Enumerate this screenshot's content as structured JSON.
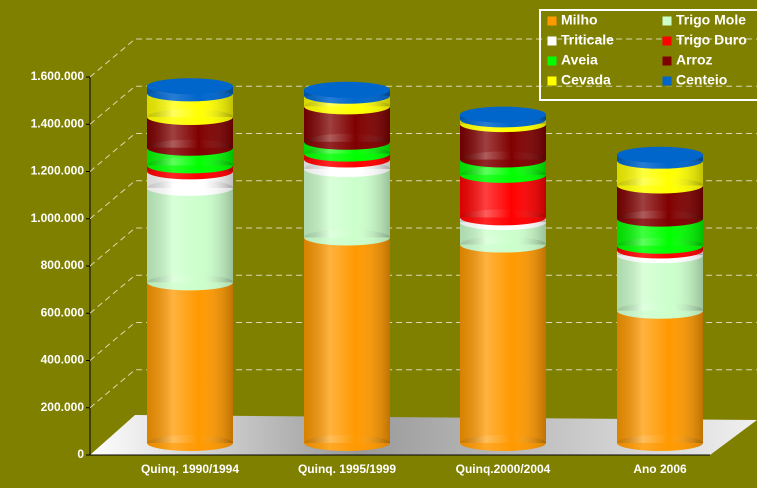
{
  "chart_data": {
    "type": "bar3d-stacked",
    "categories": [
      "Quinq. 1990/1994",
      "Quinq. 1995/1999",
      "Quinq.2000/2004",
      "Ano 2006"
    ],
    "series": [
      {
        "name": "Milho",
        "color": "#ff9900",
        "values": [
          680000,
          870000,
          840000,
          560000
        ]
      },
      {
        "name": "Trigo Mole",
        "color": "#ccffcc",
        "values": [
          400000,
          290000,
          95000,
          235000
        ]
      },
      {
        "name": "Triticale",
        "color": "#ffffff",
        "values": [
          70000,
          40000,
          20000,
          20000
        ]
      },
      {
        "name": "Trigo Duro",
        "color": "#ff0000",
        "values": [
          25000,
          25000,
          180000,
          20000
        ]
      },
      {
        "name": "Aveia",
        "color": "#00ff00",
        "values": [
          75000,
          50000,
          65000,
          115000
        ]
      },
      {
        "name": "Arroz",
        "color": "#800000",
        "values": [
          130000,
          150000,
          150000,
          140000
        ]
      },
      {
        "name": "Cevada",
        "color": "#ffff00",
        "values": [
          100000,
          45000,
          20000,
          105000
        ]
      },
      {
        "name": "Centeio",
        "color": "#0066cc",
        "values": [
          30000,
          25000,
          20000,
          25000
        ]
      }
    ],
    "ylim": [
      0,
      1600000
    ],
    "yticks": [
      0,
      {
        "value": 200000,
        "label": "200.000"
      },
      {
        "value": 400000,
        "label": "400.000"
      },
      {
        "value": 600000,
        "label": "600.000"
      },
      {
        "value": 800000,
        "label": "800.000"
      },
      {
        "value": 1000000,
        "label": "1.000.000"
      },
      {
        "value": 1200000,
        "label": "1.200.000"
      },
      {
        "value": 1400000,
        "label": "1.400.000"
      },
      {
        "value": 1600000,
        "label": "1.600.000"
      }
    ],
    "grid": true
  }
}
